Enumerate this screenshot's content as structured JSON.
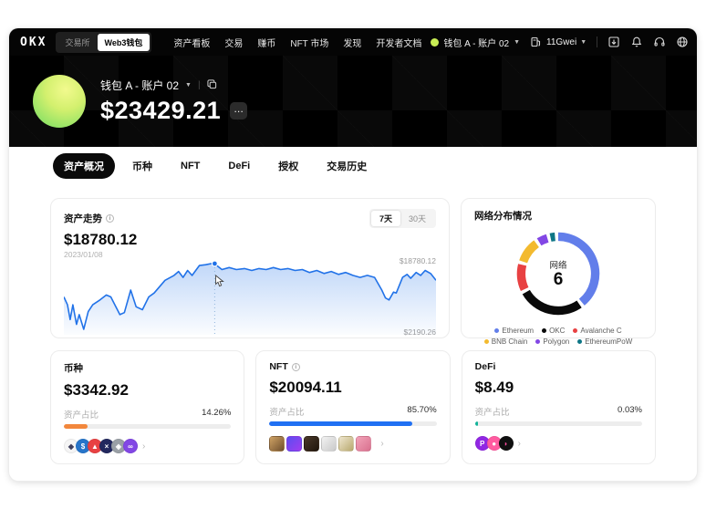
{
  "navbar": {
    "logo": "OKX",
    "toggle": {
      "exchange": "交易所",
      "web3": "Web3钱包",
      "active": "web3"
    },
    "items": [
      "资产看板",
      "交易",
      "赚币",
      "NFT 市场",
      "发现",
      "开发者文档"
    ],
    "account": "钱包 A - 账户 02",
    "gas": "11Gwei",
    "icons": [
      "download-icon",
      "bell-icon",
      "headset-icon",
      "globe-icon"
    ]
  },
  "hero": {
    "wallet_name": "钱包 A - 账户 02",
    "balance": "$23429.21",
    "more_label": "…"
  },
  "tabs": [
    {
      "label": "资产概况",
      "active": true
    },
    {
      "label": "币种",
      "active": false
    },
    {
      "label": "NFT",
      "active": false
    },
    {
      "label": "DeFi",
      "active": false
    },
    {
      "label": "授权",
      "active": false
    },
    {
      "label": "交易历史",
      "active": false
    }
  ],
  "trend_card": {
    "title": "资产走势",
    "value": "$18780.12",
    "date": "2023/01/08",
    "ranges": [
      "7天",
      "30天"
    ],
    "active_range": "7天",
    "max_label": "$18780.12",
    "min_label": "$2190.26"
  },
  "network_card": {
    "title": "网络分布情况",
    "center_label": "网络",
    "center_value": "6"
  },
  "summary_cards": [
    {
      "title": "币种",
      "has_info": false,
      "value": "$3342.92",
      "ratio_label": "资产占比",
      "percent": "14.26%",
      "percent_num": 14.26,
      "bar_color": "#f2873c",
      "icon_type": "coin",
      "icons": [
        {
          "name": "eth-coin",
          "bg": "#f5f5f5",
          "fg": "#40405e",
          "glyph": "◆"
        },
        {
          "name": "usdc-coin",
          "bg": "#2775ca",
          "fg": "#ffffff",
          "glyph": "$"
        },
        {
          "name": "red-coin",
          "bg": "#e84142",
          "fg": "#ffffff",
          "glyph": "▲"
        },
        {
          "name": "navy-coin",
          "bg": "#22285e",
          "fg": "#ffffff",
          "glyph": "×"
        },
        {
          "name": "gray-coin",
          "bg": "#9aa0a6",
          "fg": "#ffffff",
          "glyph": "◈"
        },
        {
          "name": "polygon-coin",
          "bg": "#8247e5",
          "fg": "#ffffff",
          "glyph": "∞"
        }
      ]
    },
    {
      "title": "NFT",
      "has_info": true,
      "value": "$20094.11",
      "ratio_label": "资产占比",
      "percent": "85.70%",
      "percent_num": 85.7,
      "bar_color": "#2070f3",
      "icon_type": "nft",
      "icons": [
        {
          "name": "nft-thumb",
          "c1": "#cfa264",
          "c2": "#6e4f2e"
        },
        {
          "name": "nft-thumb",
          "c1": "#5b4df0",
          "c2": "#a13df0"
        },
        {
          "name": "nft-thumb",
          "c1": "#4a382a",
          "c2": "#1f150c"
        },
        {
          "name": "nft-thumb",
          "c1": "#f2f2f2",
          "c2": "#c9c9c9"
        },
        {
          "name": "nft-thumb",
          "c1": "#efe6cf",
          "c2": "#b8a96e"
        },
        {
          "name": "nft-thumb",
          "c1": "#f2a3b8",
          "c2": "#d9718f"
        }
      ]
    },
    {
      "title": "DeFi",
      "has_info": false,
      "value": "$8.49",
      "ratio_label": "资产占比",
      "percent": "0.03%",
      "percent_num": 0.03,
      "bar_color": "#12b39a",
      "icon_type": "coin",
      "icons": [
        {
          "name": "purple-p-coin",
          "bg": "#9127e3",
          "fg": "#ffffff",
          "glyph": "P"
        },
        {
          "name": "pink-coin",
          "bg": "#ff5ba0",
          "fg": "#ffffff",
          "glyph": "●"
        },
        {
          "name": "black-pink-coin",
          "bg": "#101010",
          "fg": "#ff4d9e",
          "glyph": "◗"
        }
      ]
    }
  ],
  "colors": {
    "chart_line": "#2172e8",
    "chart_fill_top": "rgba(33,114,232,0.28)",
    "dotted_guide": "#8fb4dc",
    "accent_green_avatar": "#c9ee55"
  },
  "chart_data": [
    {
      "type": "line",
      "title": "资产走势",
      "active_range": "7天",
      "range_options": [
        "7天",
        "30天"
      ],
      "highlight": {
        "date": "2023/01/08",
        "value": 18780.12
      },
      "ylim": [
        2190.26,
        18780.12
      ],
      "y_max_label": "$18780.12",
      "y_min_label": "$2190.26",
      "grid": false,
      "marker_x": 167,
      "x": [
        0,
        4,
        7,
        10,
        14,
        17,
        22,
        27,
        32,
        40,
        47,
        52,
        62,
        67,
        74,
        80,
        87,
        94,
        100,
        112,
        122,
        127,
        132,
        137,
        142,
        150,
        157,
        163,
        167,
        175,
        183,
        191,
        200,
        208,
        216,
        224,
        232,
        240,
        248,
        256,
        264,
        272,
        280,
        288,
        296,
        304,
        312,
        320,
        328,
        336,
        344,
        352,
        356,
        360,
        365,
        368,
        375,
        380,
        384,
        390,
        395,
        400,
        406,
        412
      ],
      "values": [
        10360,
        8380,
        4660,
        8380,
        3430,
        5900,
        2190,
        6650,
        8380,
        9620,
        10860,
        10360,
        5900,
        6400,
        12100,
        7880,
        7140,
        10360,
        11350,
        14570,
        15800,
        16800,
        15310,
        17050,
        15800,
        18290,
        18500,
        18780,
        18700,
        17290,
        17790,
        17290,
        17540,
        17050,
        17540,
        17290,
        17790,
        17290,
        17540,
        17050,
        17290,
        16550,
        17050,
        16300,
        16800,
        16050,
        16550,
        15800,
        15310,
        15800,
        15310,
        12100,
        10110,
        9620,
        11600,
        11350,
        15310,
        16050,
        15060,
        16550,
        15800,
        17050,
        16300,
        14570
      ]
    },
    {
      "type": "donut",
      "title": "网络分布情况",
      "center_label": "网络",
      "center_value": 6,
      "legend_position": "bottom",
      "segments": [
        {
          "name": "Ethereum",
          "color": "#627eea",
          "value": 40
        },
        {
          "name": "OKC",
          "color": "#0a0a0a",
          "value": 27
        },
        {
          "name": "Avalanche C",
          "color": "#e84142",
          "value": 11
        },
        {
          "name": "BNB Chain",
          "color": "#f3ba2f",
          "value": 10
        },
        {
          "name": "Polygon",
          "color": "#8247e5",
          "value": 4
        },
        {
          "name": "EthereumPoW",
          "color": "#0e7686",
          "value": 2
        }
      ]
    }
  ]
}
